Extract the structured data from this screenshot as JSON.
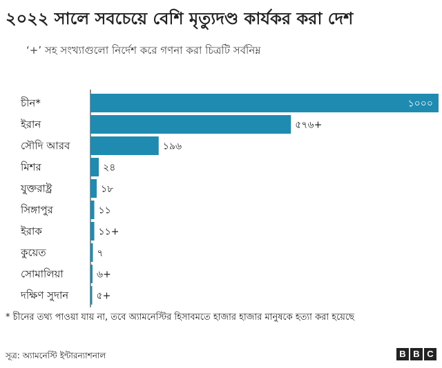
{
  "title": "২০২২ সালে সবচেয়ে বেশি মৃত্যুদণ্ড কার্যকর করা দেশ",
  "subtitle": "‘+’ সহ সংখ্যাগুলো নির্দেশ করে গণনা করা চিত্রটি সর্বনিম্ন",
  "footnote": "* চীনের তথ্য পাওয়া যায় না, তবে অ্যামনেস্টির হিসাবমতে হাজার হাজার মানুষকে হত্যা করা হয়েছে",
  "source": "সূত্র: অ্যামনেস্টি ইন্টারন্যাশনাল",
  "logo": [
    "B",
    "B",
    "C"
  ],
  "colors": {
    "bar": "#1f8bb1",
    "text": "#222222",
    "axis": "#222222"
  },
  "chart_data": {
    "type": "bar",
    "orientation": "horizontal",
    "categories": [
      "চীন*",
      "ইরান",
      "সৌদি আরব",
      "মিশর",
      "যুক্তরাষ্ট্র",
      "সিঙ্গাপুর",
      "ইরাক",
      "কুয়েত",
      "সোমালিয়া",
      "দক্ষিণ সুদান"
    ],
    "values": [
      1000,
      576,
      196,
      24,
      18,
      11,
      11,
      7,
      6,
      5
    ],
    "labels": [
      "১০০০",
      "৫৭৬+",
      "১৯৬",
      "২৪",
      "১৮",
      "১১",
      "১১+",
      "৭",
      "৬+",
      "৫+"
    ],
    "xlim": [
      0,
      1000
    ],
    "grid": false,
    "label_inside_top_bar": true
  }
}
